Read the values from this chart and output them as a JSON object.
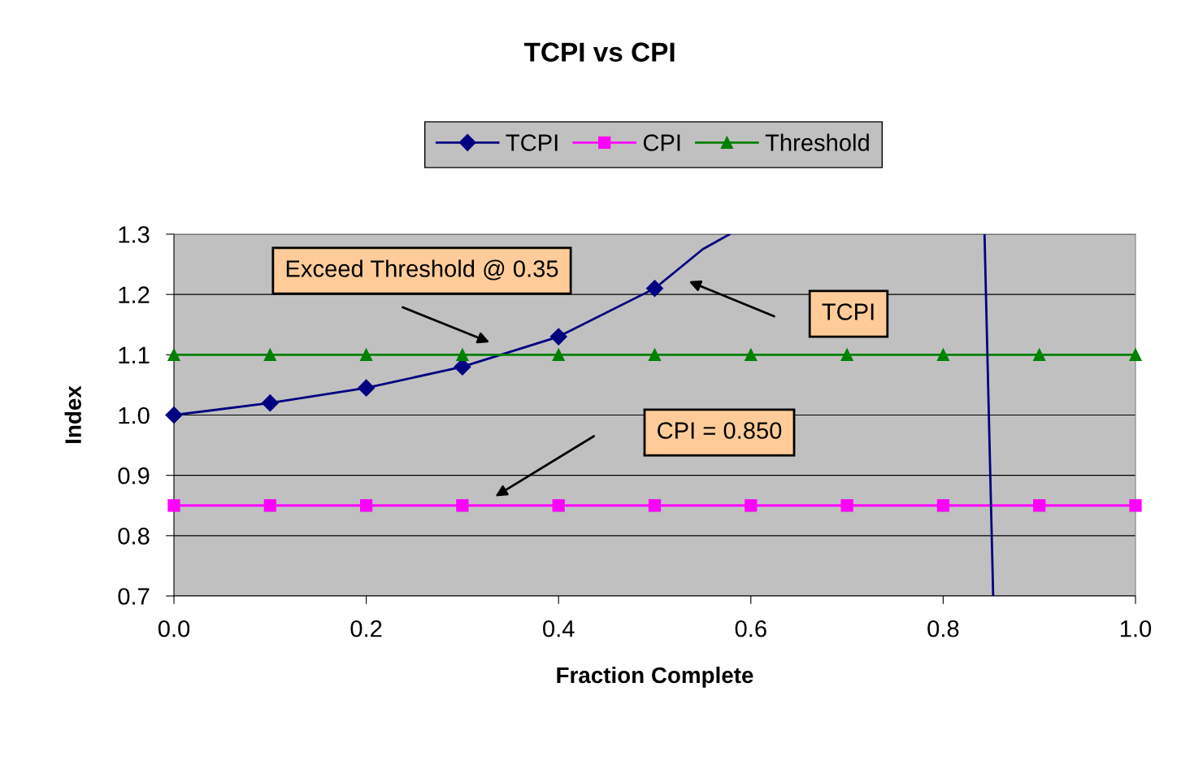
{
  "chart_data": {
    "type": "line",
    "title": "TCPI vs CPI",
    "xlabel": "Fraction Complete",
    "ylabel": "Index",
    "xlim": [
      0,
      1
    ],
    "xticks": [
      {
        "value": 0,
        "label": "0.0"
      },
      0.2,
      0.4,
      0.6,
      0.8,
      {
        "value": 1,
        "label": "1.0"
      }
    ],
    "ylim": [
      0.7,
      1.3
    ],
    "yticks": [
      0.7,
      0.8,
      0.9,
      {
        "value": 1.0,
        "label": "1.0"
      },
      1.1,
      1.2,
      1.3
    ],
    "grid": "y",
    "legend": "top",
    "series": [
      {
        "name": "TCPI",
        "color": "#000080",
        "marker": "diamond",
        "x": [
          0,
          0.1,
          0.2,
          0.3,
          0.4,
          0.5
        ],
        "values": [
          1.0,
          1.02,
          1.045,
          1.08,
          1.13,
          1.21
        ]
      },
      {
        "name": "CPI",
        "color": "#ff00ff",
        "marker": "square",
        "x": [
          0,
          0.1,
          0.2,
          0.3,
          0.4,
          0.5,
          0.6,
          0.7,
          0.8,
          0.9,
          1.0
        ],
        "values": [
          0.85,
          0.85,
          0.85,
          0.85,
          0.85,
          0.85,
          0.85,
          0.85,
          0.85,
          0.85,
          0.85
        ]
      },
      {
        "name": "Threshold",
        "color": "#008000",
        "marker": "triangle",
        "x": [
          0,
          0.1,
          0.2,
          0.3,
          0.4,
          0.5,
          0.6,
          0.7,
          0.8,
          0.9,
          1.0
        ],
        "values": [
          1.1,
          1.1,
          1.1,
          1.1,
          1.1,
          1.1,
          1.1,
          1.1,
          1.1,
          1.1,
          1.1
        ]
      },
      {
        "color": "#000080",
        "marker": "none",
        "x": [
          0.5,
          0.55,
          0.578,
          0.7,
          0.843,
          0.852
        ],
        "values": [
          1.21,
          1.275,
          1.3,
          null,
          1.3,
          0.7
        ]
      }
    ],
    "annotations": [
      "Exceed Threshold @ 0.35",
      "TCPI",
      "CPI = 0.850"
    ]
  }
}
